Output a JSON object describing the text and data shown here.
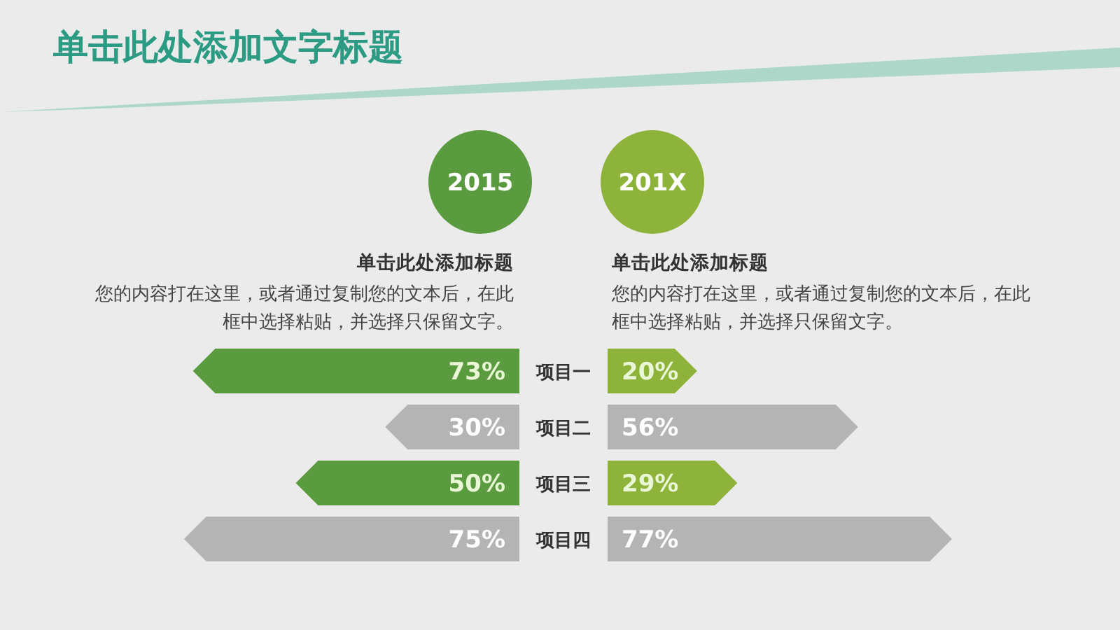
{
  "chart_data": [
    {
      "type": "bar",
      "orientation": "horizontal",
      "title": "单击此处添加文字标题",
      "categories": [
        "项目一",
        "项目二",
        "项目三",
        "项目四"
      ],
      "series": [
        {
          "name": "2015",
          "color": "#5a9b3f",
          "colors": [
            "#5a9b3f",
            "#b4b4b4",
            "#5a9b3f",
            "#b4b4b4"
          ],
          "values": [
            73,
            30,
            50,
            75
          ],
          "value_labels": [
            "73%",
            "30%",
            "50%",
            "75%"
          ]
        }
      ],
      "legend": "top",
      "annotations": [
        "单击此处添加标题",
        "您的内容打在这里，或者通过复制您的文本后，在此框中选择粘贴，并选择只保留文字。"
      ]
    },
    {
      "type": "bar",
      "orientation": "horizontal",
      "categories": [
        "项目一",
        "项目二",
        "项目三",
        "项目四"
      ],
      "tick_labels": false,
      "series": [
        {
          "name": "201X",
          "color": "#8db33a",
          "colors": [
            "#8db33a",
            "#b4b4b4",
            "#8db33a",
            "#b4b4b4"
          ],
          "values": [
            20,
            56,
            29,
            77
          ],
          "value_labels": [
            "20%",
            "56%",
            "29%",
            "77%"
          ]
        }
      ],
      "legend": "top",
      "annotations": [
        "单击此处添加标题",
        "您的内容打在这里，或者通过复制您的文本后，在此框中选择粘贴，并选择只保留文字。"
      ]
    }
  ]
}
